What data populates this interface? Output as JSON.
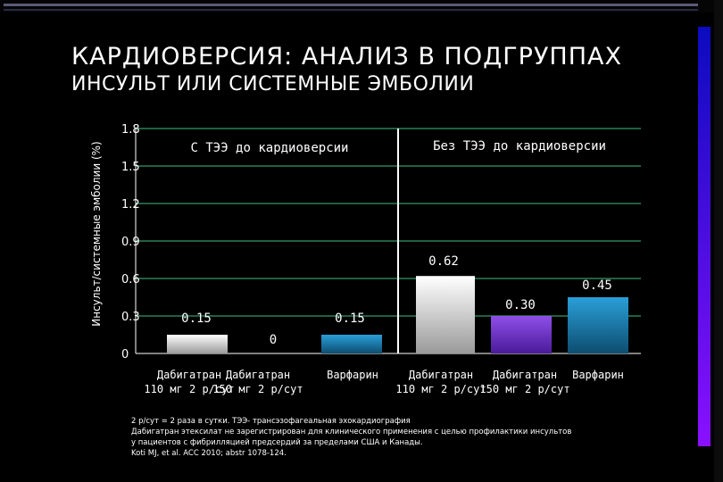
{
  "title": "КАРДИОВЕРСИЯ: АНАЛИЗ В ПОДГРУППАХ",
  "subtitle": "ИНСУЛЬТ ИЛИ СИСТЕМНЫЕ ЭМБОЛИИ",
  "chart_data": {
    "type": "bar",
    "ylabel": "Инсульт/системные эмболии (%)",
    "ylim": [
      0,
      1.8
    ],
    "yticks": [
      "0",
      "0.3",
      "0.6",
      "0.9",
      "1.2",
      "1.5",
      "1.8"
    ],
    "grid": true,
    "groups": [
      {
        "name": "С ТЭЭ до кардиоверсии",
        "bars": [
          {
            "category": "Дабигатран 110 мг 2 р/сут",
            "value": 0.15,
            "label": "0.15",
            "color": "#e8e8e8"
          },
          {
            "category": "Дабигатран 150 мг 2 р/сут",
            "value": 0,
            "label": "0",
            "color": "#7a3fd4"
          },
          {
            "category": "Варфарин",
            "value": 0.15,
            "label": "0.15",
            "color": "#1a7fb0"
          }
        ]
      },
      {
        "name": "Без ТЭЭ до кардиоверсии",
        "bars": [
          {
            "category": "Дабигатран 110 мг 2 р/сут",
            "value": 0.62,
            "label": "0.62",
            "color": "#e8e8e8"
          },
          {
            "category": "Дабигатран 150 мг 2 р/сут",
            "value": 0.3,
            "label": "0.30",
            "color": "#7a3fd4"
          },
          {
            "category": "Варфарин",
            "value": 0.45,
            "label": "0.45",
            "color": "#1a7fb0"
          }
        ]
      }
    ]
  },
  "footnotes": [
    "2 р/сут = 2 раза в сутки. ТЭЭ- трансэзофагеальная эхокардиография",
    "Дабигатран этексилат не зарегистрирован для клинического применения с целью профилактики инсультов",
    "у пациентов с фибрилляцией предсердий за пределами США и Канады.",
    "Koti MJ, et al. ACC 2010; abstr 1078-124."
  ]
}
